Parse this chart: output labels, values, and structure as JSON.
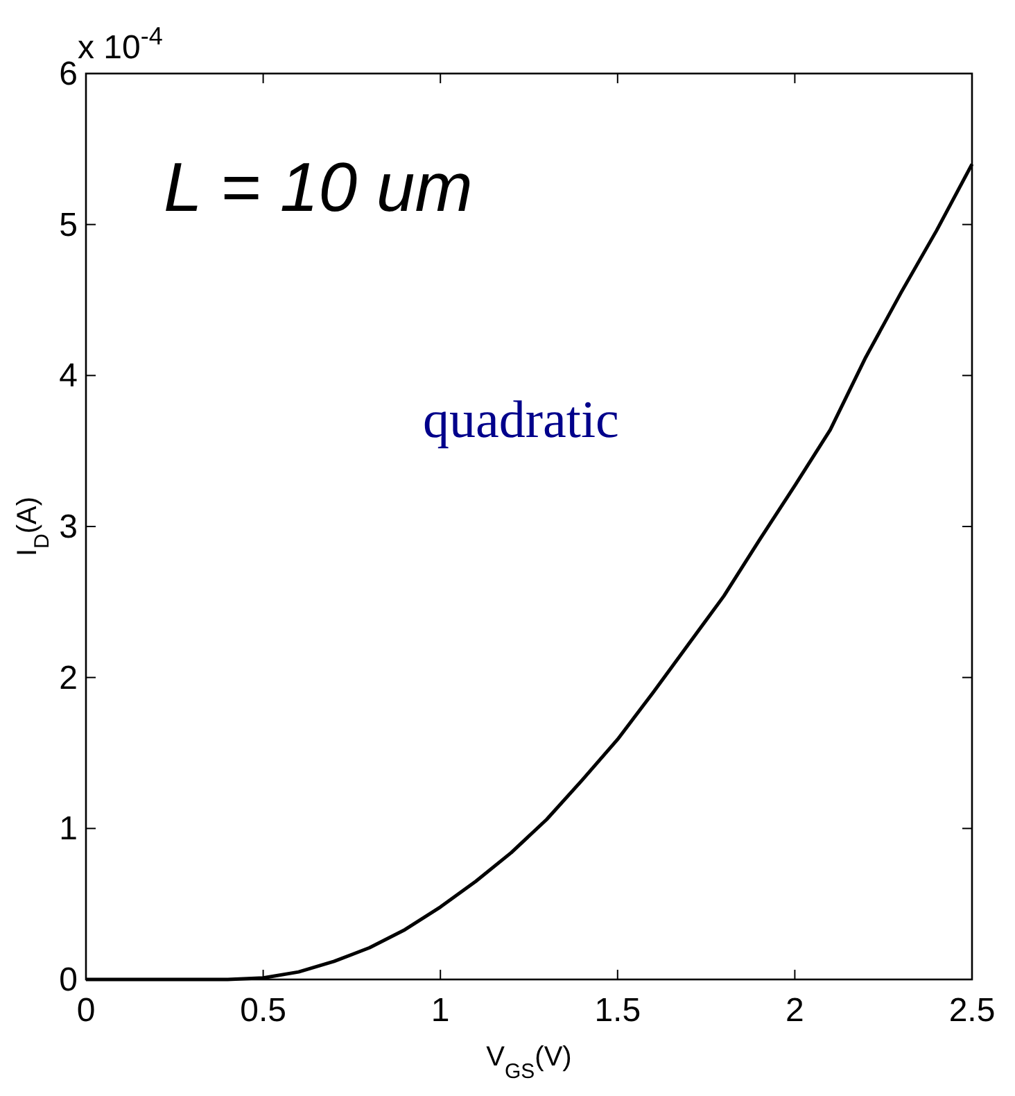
{
  "chart_data": {
    "type": "line",
    "xlabel": "V$_{GS}$(V)",
    "ylabel": "I$_{D}$(A)",
    "x": [
      0,
      0.1,
      0.2,
      0.3,
      0.4,
      0.5,
      0.6,
      0.7,
      0.8,
      0.9,
      1.0,
      1.1,
      1.2,
      1.3,
      1.4,
      1.5,
      1.6,
      1.7,
      1.8,
      1.9,
      2.0,
      2.1,
      2.2,
      2.3,
      2.4,
      2.5
    ],
    "series": [
      {
        "color": "#000000",
        "values": [
          0,
          0,
          0,
          0,
          0,
          0.01,
          0.05,
          0.12,
          0.21,
          0.33,
          0.48,
          0.65,
          0.84,
          1.06,
          1.32,
          1.59,
          1.9,
          2.22,
          2.54,
          2.91,
          3.27,
          3.64,
          4.12,
          4.55,
          4.96,
          5.4
        ]
      }
    ],
    "xlim": [
      0,
      2.5
    ],
    "ylim": [
      0,
      6
    ],
    "xticks": [
      0,
      0.5,
      1,
      1.5,
      2,
      2.5
    ],
    "yticks": [
      0,
      1,
      2,
      3,
      4,
      5,
      6
    ],
    "annotations": [
      "x 10$^{-4}$",
      "L = 10 um",
      "quadratic"
    ],
    "grid": false,
    "marker": "none",
    "line_style": "solid"
  }
}
